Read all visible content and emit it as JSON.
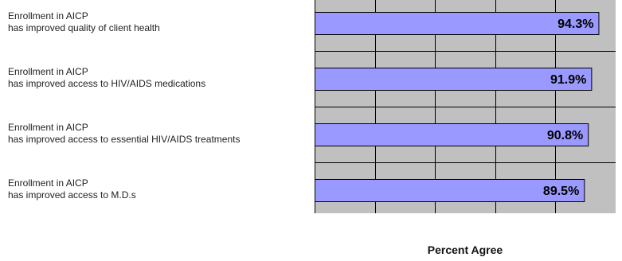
{
  "chart_data": {
    "type": "bar",
    "orientation": "horizontal",
    "categories": [
      [
        "Enrollment in AICP",
        "has improved quality of client health"
      ],
      [
        "Enrollment in AICP",
        "has improved access to HIV/AIDS medications"
      ],
      [
        "Enrollment in AICP",
        "has improved access to essential HIV/AIDS treatments"
      ],
      [
        "Enrollment in AICP",
        "has improved access to M.D.s"
      ]
    ],
    "values": [
      94.3,
      91.9,
      90.8,
      89.5
    ],
    "value_labels": [
      "94.3%",
      "91.9%",
      "90.8%",
      "89.5%"
    ],
    "title": "",
    "xlabel": "Percent Agree",
    "ylabel": "",
    "xlim": [
      0,
      100
    ],
    "grid": true,
    "colors": {
      "bar_fill": "#9999ff",
      "bar_stroke": "#000000",
      "plot_background": "#c0c0c0",
      "grid": "#000000"
    }
  }
}
